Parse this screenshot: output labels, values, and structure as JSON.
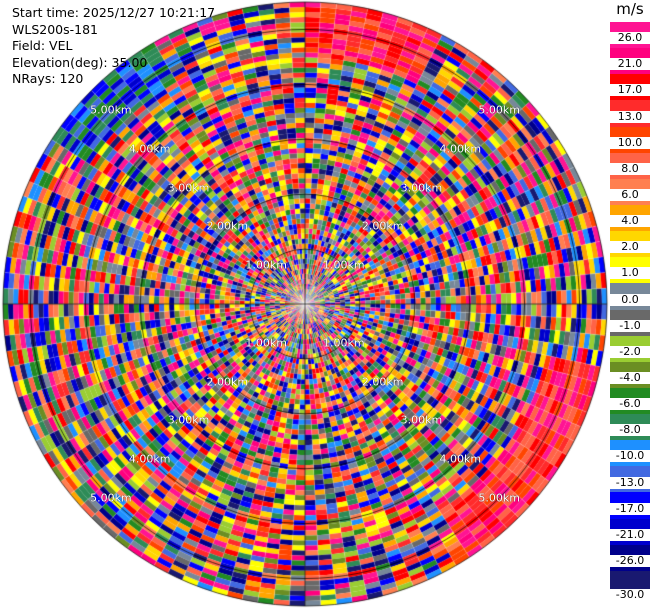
{
  "info": {
    "start_time": "Start time: 2025/12/27 10:21:17",
    "station": "WLS200s-181",
    "field": "Field: VEL",
    "elevation": "Elevation(deg): 35.00",
    "nrays": "NRays: 120"
  },
  "rings": {
    "labels": [
      "1.00km",
      "2.00km",
      "3.00km",
      "4.00km",
      "5.00km"
    ],
    "label_color": "#ffffff"
  },
  "colorbar": {
    "unit": "m/s",
    "ticks": [
      "26.0",
      "21.0",
      "17.0",
      "13.0",
      "10.0",
      "8.0",
      "6.0",
      "4.0",
      "2.0",
      "1.0",
      "0.0",
      "-1.0",
      "-2.0",
      "-4.0",
      "-6.0",
      "-8.0",
      "-10.0",
      "-13.0",
      "-17.0",
      "-21.0",
      "-26.0",
      "-30.0"
    ],
    "colors": [
      "#ff1493",
      "#ff007f",
      "#ff0000",
      "#ff2b2b",
      "#ff4500",
      "#ff6347",
      "#ff7f50",
      "#ffa500",
      "#ffd700",
      "#ffff00",
      "#778899",
      "#696969",
      "#9acd32",
      "#6b8e23",
      "#228b22",
      "#2e8b57",
      "#1e90ff",
      "#4169e1",
      "#0000ff",
      "#0000cd",
      "#00008b",
      "#191970"
    ]
  }
}
